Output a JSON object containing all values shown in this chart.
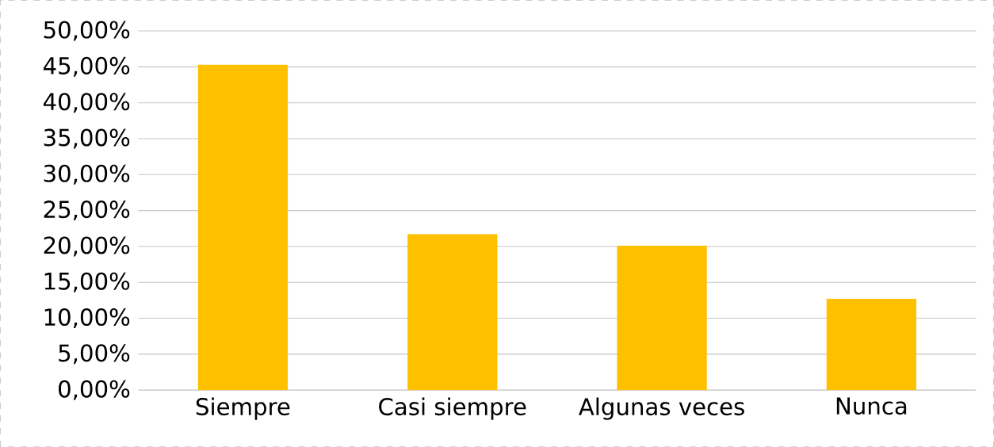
{
  "chart_data": {
    "type": "bar",
    "categories": [
      "Siempre",
      "Casi siempre",
      "Algunas veces",
      "Nunca"
    ],
    "values": [
      45.3,
      21.7,
      20.1,
      12.7
    ],
    "color": "#ffc000",
    "ylim": [
      0,
      50
    ],
    "yticks": [
      {
        "value": 0,
        "label": "0,00%"
      },
      {
        "value": 5,
        "label": "5,00%"
      },
      {
        "value": 10,
        "label": "10,00%"
      },
      {
        "value": 15,
        "label": "15,00%"
      },
      {
        "value": 20,
        "label": "20,00%"
      },
      {
        "value": 25,
        "label": "25,00%"
      },
      {
        "value": 30,
        "label": "30,00%"
      },
      {
        "value": 35,
        "label": "35,00%"
      },
      {
        "value": 40,
        "label": "40,00%"
      },
      {
        "value": 45,
        "label": "45,00%"
      },
      {
        "value": 50,
        "label": "50,00%"
      }
    ],
    "grid": "y"
  }
}
